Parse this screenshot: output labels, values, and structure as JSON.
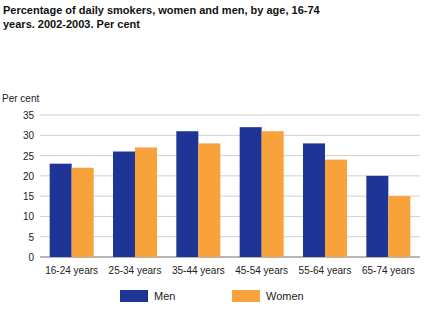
{
  "chart_data": {
    "type": "bar",
    "title": "Percentage of daily smokers, women and men, by age, 16-74 years. 2002-2003. Per cent",
    "y_label": "Per cent",
    "categories": [
      "16-24 years",
      "25-34 years",
      "35-44 years",
      "45-54 years",
      "55-64 years",
      "65-74 years"
    ],
    "series": [
      {
        "name": "Men",
        "color": "#1f3596",
        "values": [
          23,
          26,
          31,
          32,
          28,
          20
        ]
      },
      {
        "name": "Women",
        "color": "#f7a23b",
        "values": [
          22,
          27,
          28,
          31,
          24,
          15
        ]
      }
    ],
    "ylim": [
      0,
      35
    ],
    "yticks": [
      0,
      5,
      10,
      15,
      20,
      25,
      30,
      35
    ],
    "grid": true,
    "legend": "bottom"
  }
}
